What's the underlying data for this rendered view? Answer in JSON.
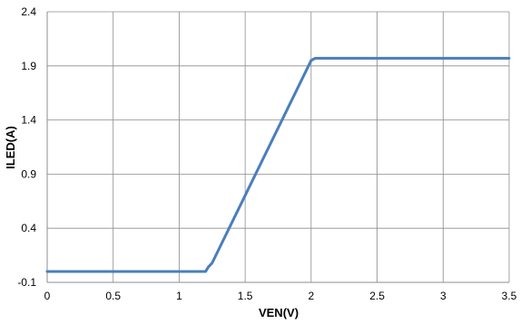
{
  "chart_data": {
    "type": "line",
    "title": "",
    "xlabel": "VEN(V)",
    "ylabel": "ILED(A)",
    "xlim": [
      0,
      3.5
    ],
    "ylim": [
      -0.1,
      2.4
    ],
    "x_ticks": [
      0,
      0.5,
      1,
      1.5,
      2,
      2.5,
      3,
      3.5
    ],
    "x_tick_labels": [
      "0",
      "0.5",
      "1",
      "1.5",
      "2",
      "2.5",
      "3",
      "3.5"
    ],
    "y_ticks": [
      -0.1,
      0.4,
      0.9,
      1.4,
      1.9,
      2.4
    ],
    "y_tick_labels": [
      "-0.1",
      "0.4",
      "0.9",
      "1.4",
      "1.9",
      "2.4"
    ],
    "grid": true,
    "legend": "none",
    "series": [
      {
        "color": "#4a7ebb",
        "x": [
          0,
          1.2,
          1.22,
          1.25,
          2.0,
          2.03,
          3.5
        ],
        "y": [
          0.0,
          0.0,
          0.04,
          0.08,
          1.95,
          1.97,
          1.97
        ]
      }
    ]
  }
}
